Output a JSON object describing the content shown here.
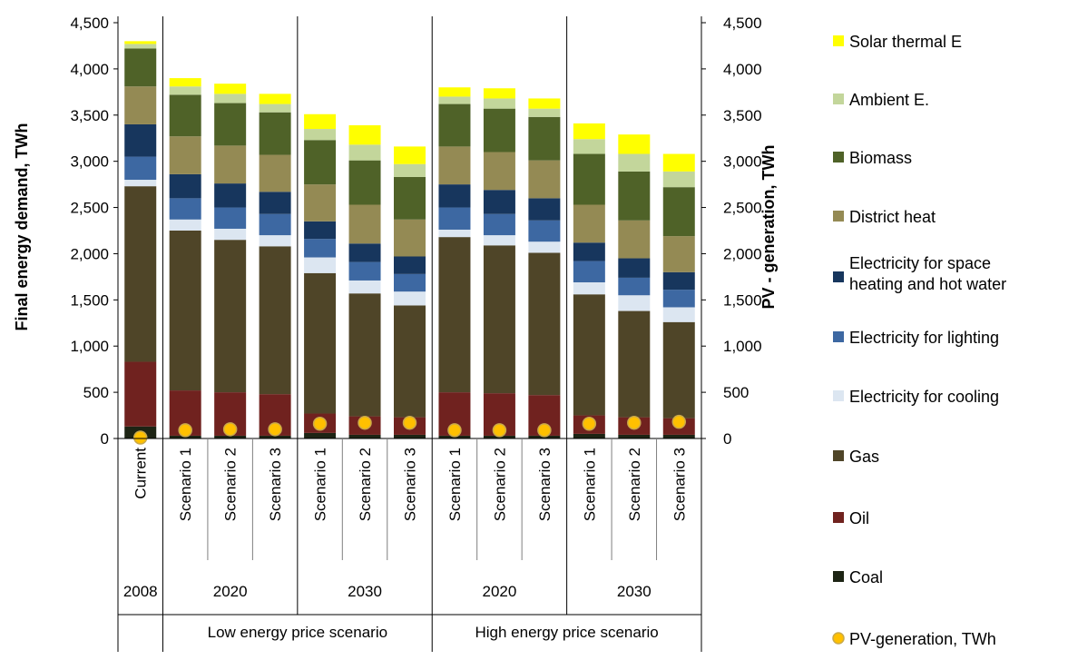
{
  "chart_data": {
    "type": "bar",
    "stacked": true,
    "ylabel": "Final energy demand, TWh",
    "y2label": "PV - generation, TWh",
    "ylim": [
      0,
      4500
    ],
    "y2lim": [
      0,
      4500
    ],
    "yticks": [
      "0",
      "500",
      "1,000",
      "1,500",
      "2,000",
      "2,500",
      "3,000",
      "3,500",
      "4,000",
      "4,500"
    ],
    "grid": false,
    "legend": "right",
    "categories": [
      "Current",
      "Scenario 1",
      "Scenario 2",
      "Scenario 3",
      "Scenario 1",
      "Scenario 2",
      "Scenario 3",
      "Scenario 1",
      "Scenario 2",
      "Scenario 3",
      "Scenario 1",
      "Scenario 2",
      "Scenario 3"
    ],
    "year_groups": [
      {
        "label": "2008",
        "start": 0,
        "end": 0
      },
      {
        "label": "2020",
        "start": 1,
        "end": 3
      },
      {
        "label": "2030",
        "start": 4,
        "end": 6
      },
      {
        "label": "2020",
        "start": 7,
        "end": 9
      },
      {
        "label": "2030",
        "start": 10,
        "end": 12
      }
    ],
    "scenario_groups": [
      {
        "label": "Low energy price scenario",
        "start": 1,
        "end": 6
      },
      {
        "label": "High energy price scenario",
        "start": 7,
        "end": 12
      }
    ],
    "series": [
      {
        "name": "Coal",
        "color": "#1d2414",
        "values": [
          130,
          30,
          30,
          30,
          60,
          40,
          40,
          30,
          30,
          30,
          50,
          40,
          40
        ]
      },
      {
        "name": "Oil",
        "color": "#70221f",
        "values": [
          700,
          490,
          470,
          450,
          210,
          200,
          190,
          470,
          460,
          440,
          200,
          190,
          180
        ]
      },
      {
        "name": "Gas",
        "color": "#4f4528",
        "values": [
          1900,
          1730,
          1650,
          1600,
          1520,
          1330,
          1210,
          1680,
          1600,
          1540,
          1310,
          1150,
          1040
        ]
      },
      {
        "name": "Electricity for cooling",
        "color": "#dce6f1",
        "values": [
          70,
          120,
          120,
          120,
          170,
          140,
          150,
          80,
          110,
          120,
          130,
          170,
          160
        ]
      },
      {
        "name": "Electricity for lighting",
        "color": "#3d68a2",
        "values": [
          250,
          230,
          230,
          230,
          200,
          200,
          190,
          240,
          230,
          230,
          230,
          190,
          190
        ]
      },
      {
        "name": "Electricity for space heating and hot water",
        "color": "#17365d",
        "values": [
          350,
          260,
          260,
          240,
          190,
          200,
          190,
          250,
          260,
          240,
          200,
          210,
          190
        ]
      },
      {
        "name": "District heat",
        "color": "#948a54",
        "values": [
          410,
          410,
          410,
          400,
          400,
          420,
          400,
          410,
          410,
          410,
          410,
          410,
          390
        ]
      },
      {
        "name": "Biomass",
        "color": "#4f6228",
        "values": [
          410,
          450,
          460,
          460,
          480,
          480,
          460,
          460,
          470,
          470,
          550,
          530,
          530
        ]
      },
      {
        "name": "Ambient E.",
        "color": "#c3d69b",
        "values": [
          50,
          90,
          100,
          90,
          120,
          170,
          140,
          80,
          110,
          90,
          160,
          190,
          170
        ]
      },
      {
        "name": "Solar thermal E",
        "color": "#ffff00",
        "values": [
          30,
          90,
          110,
          110,
          160,
          210,
          190,
          100,
          110,
          110,
          170,
          210,
          190
        ]
      }
    ],
    "pv_series": {
      "name": "PV-generation, TWh",
      "color": "#ffc000",
      "values": [
        10,
        90,
        100,
        100,
        160,
        170,
        170,
        90,
        90,
        90,
        160,
        170,
        180
      ]
    },
    "legend_order": [
      "Solar thermal E",
      "Ambient E.",
      "Biomass",
      "District heat",
      "Electricity for space heating and hot water",
      "Electricity for lighting",
      "Electricity for cooling",
      "Gas",
      "Oil",
      "Coal",
      "PV-generation, TWh"
    ]
  }
}
